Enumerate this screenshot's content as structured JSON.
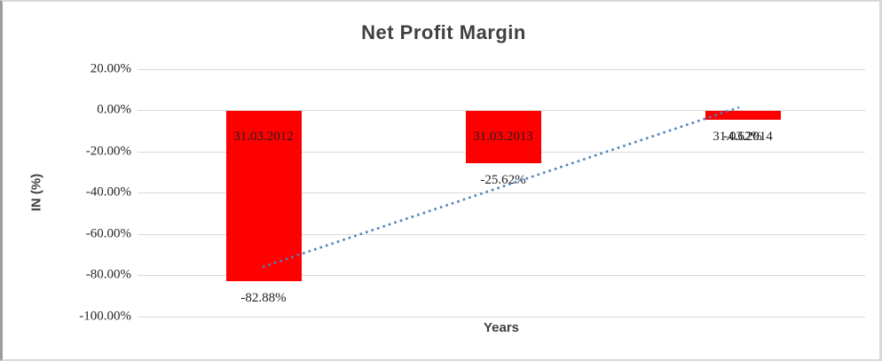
{
  "chart_data": {
    "type": "bar",
    "title": "Net Profit Margin",
    "xlabel": "Years",
    "ylabel": "IN (%)",
    "categories": [
      "31.03.2012",
      "31.03.2013",
      "31.03.2014"
    ],
    "values": [
      -82.88,
      -25.62,
      -4.62
    ],
    "data_labels": [
      "-82.88%",
      "-25.62%",
      "-4.62%"
    ],
    "yticks": [
      {
        "label": "20.00%",
        "value": 20
      },
      {
        "label": "0.00%",
        "value": 0
      },
      {
        "label": "-20.00%",
        "value": -20
      },
      {
        "label": "-40.00%",
        "value": -40
      },
      {
        "label": "-60.00%",
        "value": -60
      },
      {
        "label": "-80.00%",
        "value": -80
      },
      {
        "label": "-100.00%",
        "value": -100
      }
    ],
    "ylim": [
      -100,
      20
    ],
    "grid": true,
    "legend": "none",
    "colors": {
      "bar": "#FF0000",
      "gridline": "#D9D9D9",
      "trendline": "#4F81BD",
      "axis_title_text": "#404040",
      "label_text": "#1F1F1F"
    },
    "trendline": {
      "style": "dotted",
      "type": "linear",
      "start_pct": -76.1,
      "end_pct": 1.3
    }
  }
}
